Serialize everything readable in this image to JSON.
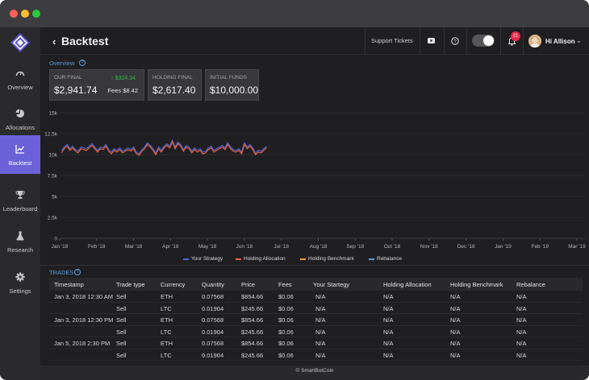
{
  "app": {
    "title": "Backtest",
    "footer": "© SmartBotCoin"
  },
  "colors": {
    "accent": "#6b62d8",
    "info": "#5b9be0",
    "positive": "#39b54a",
    "badge": "#e8294b"
  },
  "sidebar": {
    "items": [
      {
        "label": "Overview",
        "icon": "speedometer-icon",
        "active": false
      },
      {
        "label": "Allocations",
        "icon": "pie-chart-icon",
        "active": false
      },
      {
        "label": "Backtest",
        "icon": "line-chart-icon",
        "active": true
      },
      {
        "label": "Leaderboard",
        "icon": "trophy-icon",
        "active": false
      },
      {
        "label": "Research",
        "icon": "flask-icon",
        "active": false
      },
      {
        "label": "Settings",
        "icon": "gear-icon",
        "active": false
      }
    ]
  },
  "header": {
    "support_label": "Support Tickets",
    "notification_count": "21",
    "greeting": "Hi Allison"
  },
  "overview": {
    "label": "Overview",
    "cards": [
      {
        "label": "OUR FINAL",
        "value": "$2,941.74",
        "change": "↑ $324.34",
        "fees": "Fees $8.42"
      },
      {
        "label": "HOLDING FINAL",
        "value": "$2,617.40"
      },
      {
        "label": "INITIAL FUNDS",
        "value": "$10,000.00"
      }
    ]
  },
  "chart_data": {
    "type": "line",
    "title": "",
    "xlabel": "",
    "ylabel": "",
    "x_ticks": [
      "Jan '18",
      "Feb '18",
      "Mar '18",
      "Apr '18",
      "May '18",
      "Jun '18",
      "Jul '18",
      "Aug '18",
      "Sep '18",
      "Oct '18",
      "Nov '18",
      "Dec '18",
      "Jan '19",
      "Feb '19",
      "Mar '19"
    ],
    "y_ticks": [
      "0",
      "2.5k",
      "5k",
      "7.5k",
      "10k",
      "12.5k",
      "15k"
    ],
    "ylim": [
      0,
      15000
    ],
    "grid": true,
    "legend_position": "bottom",
    "series": [
      {
        "name": "Your Strategy",
        "color": "#4b63d6",
        "values": [
          10500,
          10900,
          11200,
          10700,
          11000,
          10600,
          10400,
          10900,
          10800,
          10700,
          11000,
          11300,
          10900,
          10500,
          10900,
          10800,
          11200,
          10600,
          10300,
          10700,
          10500,
          10800,
          10400,
          10600,
          10800,
          10600,
          10900,
          10300,
          10100,
          10600,
          10900,
          11400,
          11100,
          10700,
          10200,
          10900,
          10500,
          11000,
          11300,
          11000,
          11700,
          10900,
          11500,
          11200,
          10600,
          11100,
          10900,
          10400,
          10800,
          10500,
          10700,
          10300,
          10400,
          10800,
          11000,
          10500,
          10700,
          10900,
          11100,
          10800,
          11400,
          10900,
          10600,
          10500,
          10700,
          10300,
          11400,
          10900,
          11200,
          10800,
          10200,
          10500,
          10400,
          10700,
          11000
        ]
      },
      {
        "name": "Holding Allocation",
        "color": "#e8613a",
        "values": [
          10200,
          10700,
          11000,
          10500,
          10800,
          10400,
          10200,
          10700,
          10600,
          10500,
          10800,
          11100,
          10700,
          10300,
          10700,
          10600,
          11000,
          10400,
          10100,
          10500,
          10300,
          10600,
          10200,
          10400,
          10600,
          10400,
          10700,
          10100,
          9900,
          10400,
          10700,
          11200,
          10900,
          10500,
          10000,
          10700,
          10300,
          10800,
          11100,
          10800,
          11500,
          10700,
          11300,
          11000,
          10400,
          10900,
          10700,
          10200,
          10600,
          10300,
          10500,
          10100,
          10200,
          10600,
          10800,
          10300,
          10500,
          10700,
          10900,
          10600,
          11200,
          10700,
          10400,
          10300,
          10500,
          10100,
          11200,
          10700,
          11000,
          10600,
          10000,
          10300,
          10200,
          10500,
          10800
        ]
      },
      {
        "name": "Holding Benchmark",
        "color": "#f0962c",
        "values": []
      },
      {
        "name": "Rebalance",
        "color": "#5b9be0",
        "values": []
      }
    ]
  },
  "trades": {
    "label": "TRADES",
    "headers": [
      "Timestamp",
      "Trade type",
      "Currency",
      "Quantity",
      "Price",
      "Fees",
      "Your Startegy",
      "Holding Allocation",
      "Holding Benchmark",
      "Rebalance"
    ],
    "rows": [
      [
        "Jan 3, 2018  12:30 AM",
        "Sell",
        "ETH",
        "0.07568",
        "$854.66",
        "$0.06",
        "N/A",
        "N/A",
        "N/A",
        "N/A"
      ],
      [
        "",
        "Sell",
        "LTC",
        "0.01904",
        "$245.66",
        "$0.06",
        "N/A",
        "N/A",
        "N/A",
        "N/A"
      ],
      [
        "Jan 3, 2018   12:30 PM",
        "Sell",
        "ETH",
        "0.07568",
        "$854.66",
        "$0.06",
        "N/A",
        "N/A",
        "N/A",
        "N/A"
      ],
      [
        "",
        "Sell",
        "LTC",
        "0.01904",
        "$245.66",
        "$0.06",
        "N/A",
        "N/A",
        "N/A",
        "N/A"
      ],
      [
        "Jan 5, 2018   2:30 PM",
        "Sell",
        "ETH",
        "0.07568",
        "$854.66",
        "$0.06",
        "N/A",
        "N/A",
        "N/A",
        "N/A"
      ],
      [
        "",
        "Sell",
        "LTC",
        "0.01904",
        "$245.66",
        "$0.06",
        "N/A",
        "N/A",
        "N/A",
        "N/A"
      ]
    ]
  }
}
